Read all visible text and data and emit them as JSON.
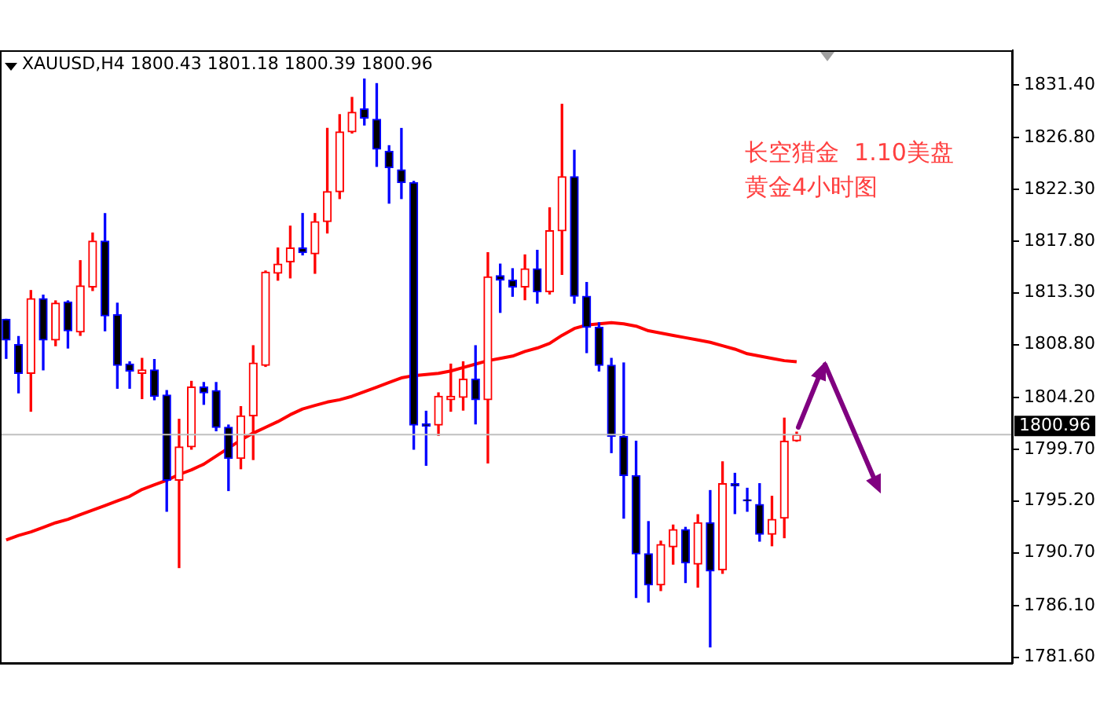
{
  "chart_data": {
    "type": "candlestick",
    "title": "XAUUSD,H4 1800.43 1801.18 1800.39 1800.96",
    "annotations": [
      "长空猎金  1.10美盘",
      "黄金4小时图"
    ],
    "categories": [
      null,
      null,
      null,
      null,
      null,
      null,
      null,
      null,
      null,
      null,
      null,
      null,
      null,
      null,
      null,
      null,
      null,
      null,
      null,
      null,
      null,
      null,
      null,
      null,
      null,
      null,
      null,
      null,
      null,
      null,
      null,
      null,
      null,
      null,
      null,
      null,
      null,
      null,
      null,
      null,
      null,
      null,
      null,
      null,
      null,
      null,
      null,
      null,
      null,
      null,
      null,
      null,
      null,
      null,
      null,
      null,
      null,
      null,
      null,
      null,
      null,
      null,
      null,
      null,
      null,
      null,
      null,
      null,
      null,
      null,
      null,
      null,
      null,
      null,
      null,
      null,
      null,
      null,
      null,
      null,
      null,
      null
    ],
    "ohlc": [
      [
        1811.0,
        1811.0,
        1807.6,
        1809.2
      ],
      [
        1808.8,
        1809.5,
        1804.6,
        1806.3
      ],
      [
        1806.3,
        1813.5,
        1803.0,
        1812.8
      ],
      [
        1812.8,
        1813.1,
        1806.6,
        1809.2
      ],
      [
        1809.2,
        1812.6,
        1808.7,
        1812.4
      ],
      [
        1812.5,
        1812.6,
        1808.5,
        1810.0
      ],
      [
        1809.9,
        1816.1,
        1809.6,
        1813.9
      ],
      [
        1813.8,
        1818.5,
        1813.5,
        1817.8
      ],
      [
        1817.8,
        1820.2,
        1810.0,
        1811.3
      ],
      [
        1811.4,
        1812.4,
        1805.0,
        1807.0
      ],
      [
        1807.1,
        1807.3,
        1805.0,
        1806.5
      ],
      [
        1806.3,
        1807.6,
        1804.1,
        1806.6
      ],
      [
        1806.6,
        1807.5,
        1804.0,
        1804.3
      ],
      [
        1804.4,
        1804.8,
        1794.3,
        1797.0
      ],
      [
        1797.0,
        1802.3,
        1789.4,
        1799.9
      ],
      [
        1799.9,
        1805.6,
        1799.7,
        1805.1
      ],
      [
        1805.1,
        1805.5,
        1803.6,
        1804.6
      ],
      [
        1804.8,
        1805.5,
        1801.3,
        1801.6
      ],
      [
        1801.6,
        1801.8,
        1796.1,
        1798.9
      ],
      [
        1798.9,
        1803.4,
        1798.0,
        1802.6
      ],
      [
        1802.6,
        1808.7,
        1798.8,
        1807.2
      ],
      [
        1807.0,
        1815.2,
        1806.9,
        1815.1
      ],
      [
        1815.0,
        1817.2,
        1814.4,
        1815.8
      ],
      [
        1816.0,
        1819.1,
        1814.6,
        1817.2
      ],
      [
        1817.2,
        1820.2,
        1816.6,
        1816.8
      ],
      [
        1816.7,
        1820.2,
        1815.0,
        1819.5
      ],
      [
        1819.5,
        1827.6,
        1818.5,
        1822.1
      ],
      [
        1822.1,
        1828.8,
        1821.5,
        1827.3
      ],
      [
        1827.3,
        1830.3,
        1827.2,
        1829.0
      ],
      [
        1829.3,
        1831.9,
        1827.9,
        1828.5
      ],
      [
        1828.4,
        1831.5,
        1824.3,
        1825.8
      ],
      [
        1825.6,
        1826.1,
        1821.1,
        1824.2
      ],
      [
        1824.0,
        1827.6,
        1821.5,
        1822.9
      ],
      [
        1822.9,
        1823.0,
        1799.7,
        1801.8
      ],
      [
        1801.9,
        1803.0,
        1798.3,
        1801.7
      ],
      [
        1801.8,
        1804.6,
        1800.9,
        1804.3
      ],
      [
        1804.0,
        1807.1,
        1803.0,
        1804.3
      ],
      [
        1804.2,
        1807.3,
        1803.1,
        1805.8
      ],
      [
        1805.8,
        1808.7,
        1801.9,
        1804.0
      ],
      [
        1804.0,
        1816.8,
        1798.5,
        1814.7
      ],
      [
        1814.8,
        1815.8,
        1811.6,
        1814.4
      ],
      [
        1814.4,
        1815.4,
        1813.0,
        1813.8
      ],
      [
        1813.8,
        1816.6,
        1812.7,
        1815.4
      ],
      [
        1815.4,
        1817.0,
        1812.4,
        1813.4
      ],
      [
        1813.4,
        1820.7,
        1813.2,
        1818.7
      ],
      [
        1818.7,
        1829.7,
        1814.9,
        1823.4
      ],
      [
        1823.4,
        1825.7,
        1812.4,
        1813.0
      ],
      [
        1813.0,
        1814.2,
        1808.1,
        1810.3
      ],
      [
        1810.3,
        1810.7,
        1806.5,
        1807.0
      ],
      [
        1807.0,
        1807.6,
        1799.4,
        1800.8
      ],
      [
        1800.8,
        1807.2,
        1793.7,
        1797.4
      ],
      [
        1797.4,
        1800.4,
        1786.8,
        1790.6
      ],
      [
        1790.6,
        1793.4,
        1786.4,
        1787.9
      ],
      [
        1787.9,
        1791.7,
        1787.4,
        1791.4
      ],
      [
        1791.2,
        1793.1,
        1789.7,
        1792.7
      ],
      [
        1792.7,
        1792.9,
        1788.1,
        1789.8
      ],
      [
        1789.7,
        1794.0,
        1787.7,
        1793.3
      ],
      [
        1793.3,
        1796.1,
        1782.5,
        1789.1
      ],
      [
        1789.2,
        1798.6,
        1788.9,
        1796.7
      ],
      [
        1796.7,
        1797.6,
        1794.1,
        1796.5
      ],
      [
        1795.3,
        1796.3,
        1794.3,
        1795.2
      ],
      [
        1794.9,
        1796.7,
        1791.7,
        1792.3
      ],
      [
        1792.3,
        1795.6,
        1791.3,
        1793.6
      ],
      [
        1793.7,
        1802.4,
        1792.0,
        1800.4
      ],
      [
        1800.43,
        1801.18,
        1800.39,
        1800.96
      ],
      null,
      null,
      null,
      null,
      null,
      null,
      null,
      null,
      null,
      null,
      null,
      null,
      null,
      null,
      null,
      null,
      null
    ],
    "colors": [
      "#0000ff",
      "#0000ff",
      "#ff0000",
      "#0000ff",
      "#ff0000",
      "#0000ff",
      "#ff0000",
      "#ff0000",
      "#0000ff",
      "#0000ff",
      "#0000ff",
      "#ff0000",
      "#0000ff",
      "#0000ff",
      "#ff0000",
      "#ff0000",
      "#0000ff",
      "#0000ff",
      "#0000ff",
      "#ff0000",
      "#ff0000",
      "#ff0000",
      "#ff0000",
      "#ff0000",
      "#0000ff",
      "#ff0000",
      "#ff0000",
      "#ff0000",
      "#ff0000",
      "#0000ff",
      "#0000ff",
      "#0000ff",
      "#0000ff",
      "#0000ff",
      "#0000ff",
      "#ff0000",
      "#ff0000",
      "#ff0000",
      "#0000ff",
      "#ff0000",
      "#0000ff",
      "#0000ff",
      "#ff0000",
      "#0000ff",
      "#ff0000",
      "#ff0000",
      "#0000ff",
      "#0000ff",
      "#0000ff",
      "#0000ff",
      "#0000ff",
      "#0000ff",
      "#0000ff",
      "#ff0000",
      "#ff0000",
      "#0000ff",
      "#ff0000",
      "#0000ff",
      "#ff0000",
      "#0000ff",
      "#0000ff",
      "#0000ff",
      "#ff0000",
      "#ff0000",
      "#ff0000",
      null,
      null,
      null,
      null,
      null,
      null,
      null,
      null,
      null,
      null,
      null,
      null,
      null,
      null,
      null,
      null,
      null
    ],
    "series": [
      {
        "type": "line",
        "color": "#ff0000",
        "values": [
          1791.8,
          1792.2,
          1792.5,
          1792.9,
          1793.3,
          1793.6,
          1794.0,
          1794.4,
          1794.8,
          1795.2,
          1795.6,
          1796.2,
          1796.6,
          1797.0,
          1797.5,
          1797.9,
          1798.4,
          1799.1,
          1799.8,
          1800.5,
          1801.1,
          1801.6,
          1802.1,
          1802.7,
          1803.2,
          1803.5,
          1803.8,
          1804.0,
          1804.3,
          1804.7,
          1805.1,
          1805.5,
          1805.9,
          1806.1,
          1806.2,
          1806.3,
          1806.5,
          1806.8,
          1807.1,
          1807.4,
          1807.6,
          1807.8,
          1808.2,
          1808.5,
          1808.9,
          1809.6,
          1810.2,
          1810.5,
          1810.6,
          1810.7,
          1810.6,
          1810.4,
          1810.0,
          1809.8,
          1809.6,
          1809.4,
          1809.2,
          1809.0,
          1808.7,
          1808.4,
          1808.0,
          1807.8,
          1807.6,
          1807.4,
          1807.3,
          null,
          null,
          null,
          null,
          null,
          null,
          null,
          null,
          null,
          null,
          null,
          null,
          null,
          null,
          null,
          null,
          null
        ]
      }
    ],
    "ylim": [
      1781.1,
      1834.4
    ],
    "yticks": [
      {
        "value": 1781.6,
        "label": "1781.60"
      },
      {
        "value": 1786.1,
        "label": "1786.10"
      },
      {
        "value": 1790.7,
        "label": "1790.70"
      },
      {
        "value": 1795.2,
        "label": "1795.20"
      },
      {
        "value": 1799.7,
        "label": "1799.70"
      },
      {
        "value": 1804.2,
        "label": "1804.20"
      },
      {
        "value": 1808.8,
        "label": "1808.80"
      },
      {
        "value": 1813.3,
        "label": "1813.30"
      },
      {
        "value": 1817.8,
        "label": "1817.80"
      },
      {
        "value": 1822.3,
        "label": "1822.30"
      },
      {
        "value": 1826.8,
        "label": "1826.80"
      },
      {
        "value": 1831.4,
        "label": "1831.40"
      }
    ],
    "ref_lines": [
      {
        "axis": "y",
        "value": 1800.96,
        "label": "1800.96",
        "color": "#c0c0c0"
      }
    ],
    "tick_labels": "y"
  }
}
